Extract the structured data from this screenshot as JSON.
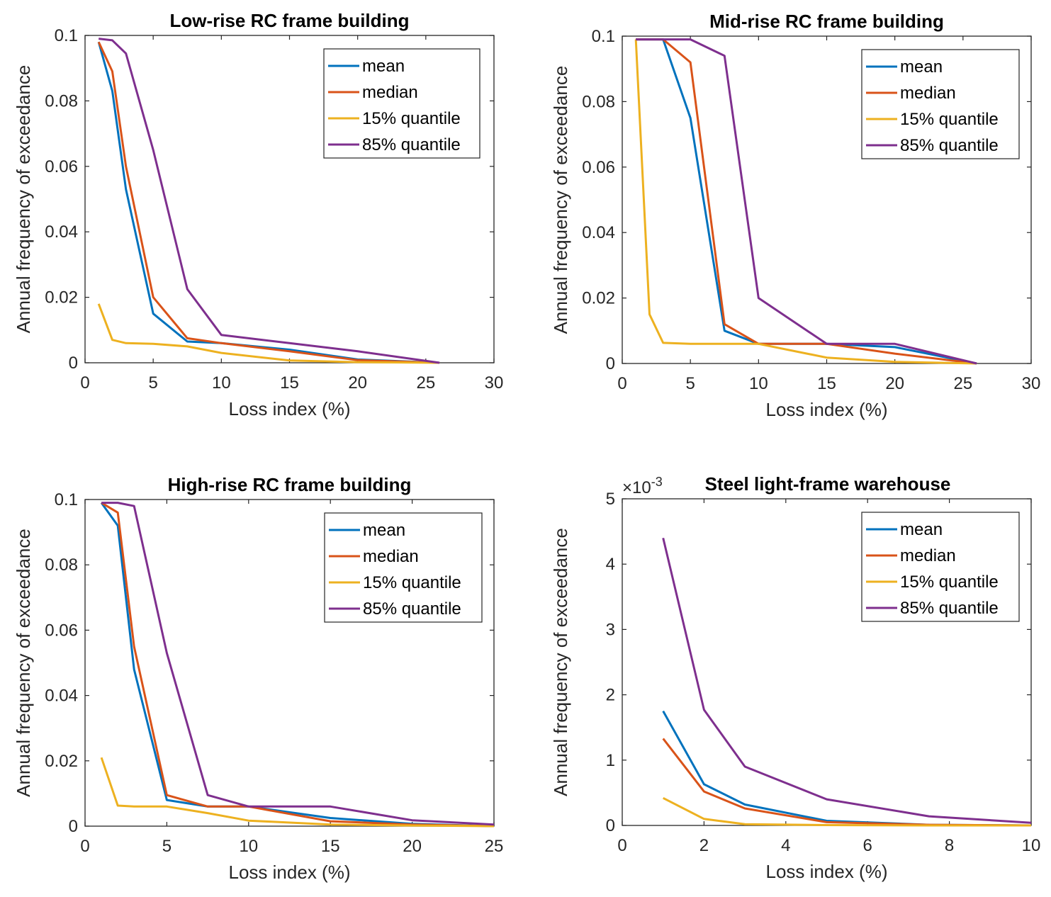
{
  "colors": {
    "mean": "#0072BD",
    "median": "#D95319",
    "q15": "#EDB120",
    "q85": "#7E2F8E"
  },
  "chart_data": [
    {
      "type": "line",
      "title": "Low-rise RC frame building",
      "xlabel": "Loss index (%)",
      "ylabel": "Annual frequency of exceedance",
      "xlim": [
        0,
        30
      ],
      "ylim": [
        0,
        0.1
      ],
      "xticks": [
        0,
        5,
        10,
        15,
        20,
        25,
        30
      ],
      "xtick_labels": [
        "0",
        "5",
        "10",
        "15",
        "20",
        "25",
        "30"
      ],
      "yticks": [
        0,
        0.02,
        0.04,
        0.06,
        0.08,
        0.1
      ],
      "ytick_labels": [
        "0",
        "0.02",
        "0.04",
        "0.06",
        "0.08",
        "0.1"
      ],
      "y_exponent": "",
      "legend_position": "top-right",
      "series": [
        {
          "name": "mean",
          "color": "#0072BD",
          "x": [
            1,
            2,
            3,
            5,
            7.5,
            10,
            15,
            20,
            26
          ],
          "y": [
            0.098,
            0.083,
            0.053,
            0.015,
            0.0065,
            0.006,
            0.004,
            0.001,
            0
          ]
        },
        {
          "name": "median",
          "color": "#D95319",
          "x": [
            1,
            2,
            3,
            5,
            7.5,
            10,
            15,
            20,
            26
          ],
          "y": [
            0.098,
            0.089,
            0.06,
            0.02,
            0.0075,
            0.006,
            0.0035,
            0.0008,
            0
          ]
        },
        {
          "name": "15% quantile",
          "color": "#EDB120",
          "x": [
            1,
            2,
            3,
            5,
            7.5,
            10,
            15,
            20,
            26
          ],
          "y": [
            0.018,
            0.007,
            0.006,
            0.0058,
            0.005,
            0.003,
            0.0007,
            0.0002,
            0
          ]
        },
        {
          "name": "85% quantile",
          "color": "#7E2F8E",
          "x": [
            1,
            2,
            3,
            5,
            7.5,
            10,
            15,
            20,
            26
          ],
          "y": [
            0.099,
            0.0985,
            0.0945,
            0.065,
            0.0225,
            0.0085,
            0.006,
            0.0035,
            0
          ]
        }
      ]
    },
    {
      "type": "line",
      "title": "Mid-rise RC frame building",
      "xlabel": "Loss index (%)",
      "ylabel": "Annual frequency of exceedance",
      "xlim": [
        0,
        30
      ],
      "ylim": [
        0,
        0.1
      ],
      "xticks": [
        0,
        5,
        10,
        15,
        20,
        25,
        30
      ],
      "xtick_labels": [
        "0",
        "5",
        "10",
        "15",
        "20",
        "25",
        "30"
      ],
      "yticks": [
        0,
        0.02,
        0.04,
        0.06,
        0.08,
        0.1
      ],
      "ytick_labels": [
        "0",
        "0.02",
        "0.04",
        "0.06",
        "0.08",
        "0.1"
      ],
      "y_exponent": "",
      "legend_position": "top-right",
      "series": [
        {
          "name": "mean",
          "color": "#0072BD",
          "x": [
            1,
            2,
            3,
            5,
            7.5,
            10,
            15,
            20,
            26
          ],
          "y": [
            0.099,
            0.099,
            0.099,
            0.075,
            0.01,
            0.006,
            0.006,
            0.005,
            0
          ]
        },
        {
          "name": "median",
          "color": "#D95319",
          "x": [
            1,
            2,
            3,
            5,
            7.5,
            10,
            15,
            20,
            26
          ],
          "y": [
            0.099,
            0.099,
            0.099,
            0.092,
            0.012,
            0.006,
            0.006,
            0.003,
            0
          ]
        },
        {
          "name": "15% quantile",
          "color": "#EDB120",
          "x": [
            1,
            2,
            3,
            5,
            7.5,
            10,
            15,
            20,
            26
          ],
          "y": [
            0.099,
            0.015,
            0.0063,
            0.006,
            0.006,
            0.006,
            0.0018,
            0.0005,
            0
          ]
        },
        {
          "name": "85% quantile",
          "color": "#7E2F8E",
          "x": [
            1,
            2,
            3,
            5,
            7.5,
            10,
            15,
            20,
            26
          ],
          "y": [
            0.099,
            0.099,
            0.099,
            0.099,
            0.094,
            0.02,
            0.006,
            0.006,
            0
          ]
        }
      ]
    },
    {
      "type": "line",
      "title": "High-rise RC frame building",
      "xlabel": "Loss index (%)",
      "ylabel": "Annual frequency of exceedance",
      "xlim": [
        0,
        25
      ],
      "ylim": [
        0,
        0.1
      ],
      "xticks": [
        0,
        5,
        10,
        15,
        20,
        25
      ],
      "xtick_labels": [
        "0",
        "5",
        "10",
        "15",
        "20",
        "25"
      ],
      "yticks": [
        0,
        0.02,
        0.04,
        0.06,
        0.08,
        0.1
      ],
      "ytick_labels": [
        "0",
        "0.02",
        "0.04",
        "0.06",
        "0.08",
        "0.1"
      ],
      "y_exponent": "",
      "legend_position": "top-right",
      "series": [
        {
          "name": "mean",
          "color": "#0072BD",
          "x": [
            1,
            2,
            3,
            5,
            7.5,
            10,
            15,
            20,
            25
          ],
          "y": [
            0.099,
            0.092,
            0.048,
            0.008,
            0.006,
            0.006,
            0.0025,
            0.0007,
            0
          ]
        },
        {
          "name": "median",
          "color": "#D95319",
          "x": [
            1,
            2,
            3,
            5,
            7.5,
            10,
            15,
            20,
            25
          ],
          "y": [
            0.099,
            0.096,
            0.055,
            0.0095,
            0.006,
            0.006,
            0.0015,
            0.0005,
            0
          ]
        },
        {
          "name": "15% quantile",
          "color": "#EDB120",
          "x": [
            1,
            2,
            3,
            5,
            7.5,
            10,
            15,
            20,
            25
          ],
          "y": [
            0.021,
            0.0063,
            0.006,
            0.006,
            0.004,
            0.0017,
            0.0005,
            0.0002,
            0
          ]
        },
        {
          "name": "85% quantile",
          "color": "#7E2F8E",
          "x": [
            1,
            2,
            3,
            5,
            7.5,
            10,
            15,
            20,
            25
          ],
          "y": [
            0.099,
            0.099,
            0.098,
            0.053,
            0.0095,
            0.006,
            0.006,
            0.0018,
            0.0005
          ]
        }
      ]
    },
    {
      "type": "line",
      "title": "Steel light-frame warehouse",
      "xlabel": "Loss index (%)",
      "ylabel": "Annual frequency of exceedance",
      "xlim": [
        0,
        10
      ],
      "ylim": [
        0,
        5
      ],
      "xticks": [
        0,
        2,
        4,
        6,
        8,
        10
      ],
      "xtick_labels": [
        "0",
        "2",
        "4",
        "6",
        "8",
        "10"
      ],
      "yticks": [
        0,
        1,
        2,
        3,
        4,
        5
      ],
      "ytick_labels": [
        "0",
        "1",
        "2",
        "3",
        "4",
        "5"
      ],
      "y_exponent": "-3",
      "legend_position": "top-right",
      "series": [
        {
          "name": "mean",
          "color": "#0072BD",
          "x": [
            1,
            2,
            3,
            5,
            7.5,
            10
          ],
          "y": [
            1.75,
            0.63,
            0.32,
            0.07,
            0.01,
            0
          ]
        },
        {
          "name": "median",
          "color": "#D95319",
          "x": [
            1,
            2,
            3,
            5,
            7.5,
            10
          ],
          "y": [
            1.33,
            0.52,
            0.26,
            0.05,
            0.01,
            0
          ]
        },
        {
          "name": "15% quantile",
          "color": "#EDB120",
          "x": [
            1,
            2,
            3,
            5,
            7.5,
            10
          ],
          "y": [
            0.42,
            0.1,
            0.02,
            0.005,
            0,
            0
          ]
        },
        {
          "name": "85% quantile",
          "color": "#7E2F8E",
          "x": [
            1,
            2,
            3,
            5,
            7.5,
            10
          ],
          "y": [
            4.4,
            1.77,
            0.9,
            0.4,
            0.14,
            0.04
          ]
        }
      ]
    }
  ]
}
